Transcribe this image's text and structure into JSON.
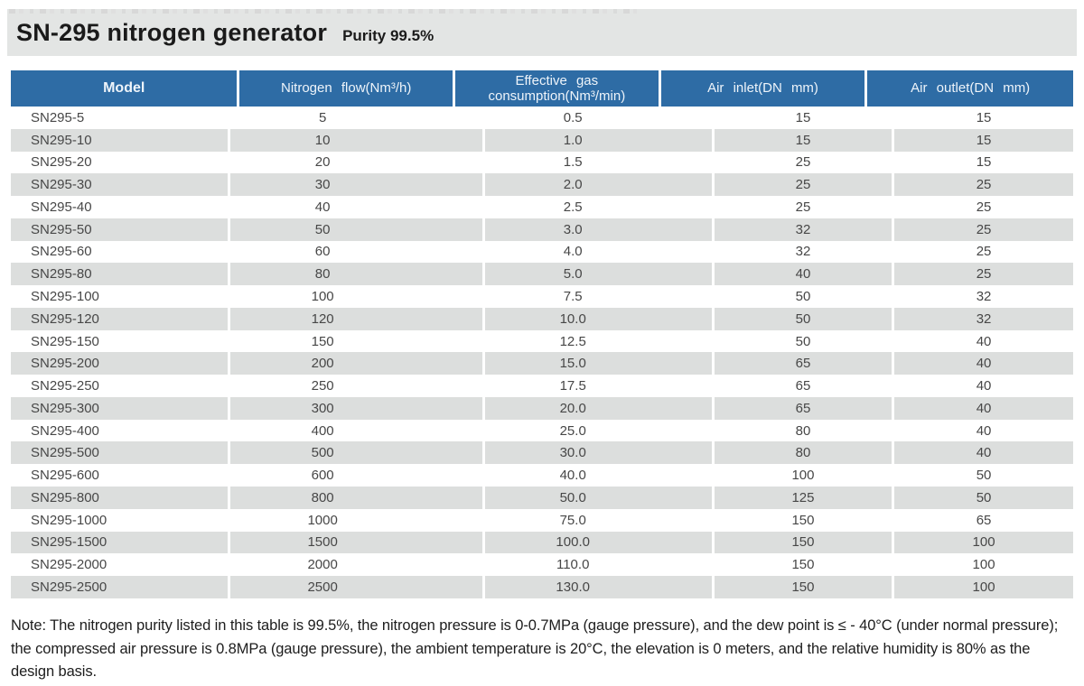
{
  "header": {
    "title": "SN-295 nitrogen generator",
    "subtitle": "Purity 99.5%"
  },
  "colors": {
    "table_header_bg": "#2e6ca5",
    "table_header_text": "#eef4fa",
    "stripe_row_bg": "#dcdedd",
    "title_band_bg": "#e3e5e4",
    "cell_text": "#474747"
  },
  "table": {
    "columns": [
      "Model",
      "Nitrogen flow(Nm³/h)",
      "Effective gas\nconsumption(Nm³/min)",
      "Air inlet(DN mm)",
      "Air outlet(DN mm)"
    ],
    "rows": [
      [
        "SN295-5",
        "5",
        "0.5",
        "15",
        "15"
      ],
      [
        "SN295-10",
        "10",
        "1.0",
        "15",
        "15"
      ],
      [
        "SN295-20",
        "20",
        "1.5",
        "25",
        "15"
      ],
      [
        "SN295-30",
        "30",
        "2.0",
        "25",
        "25"
      ],
      [
        "SN295-40",
        "40",
        "2.5",
        "25",
        "25"
      ],
      [
        "SN295-50",
        "50",
        "3.0",
        "32",
        "25"
      ],
      [
        "SN295-60",
        "60",
        "4.0",
        "32",
        "25"
      ],
      [
        "SN295-80",
        "80",
        "5.0",
        "40",
        "25"
      ],
      [
        "SN295-100",
        "100",
        "7.5",
        "50",
        "32"
      ],
      [
        "SN295-120",
        "120",
        "10.0",
        "50",
        "32"
      ],
      [
        "SN295-150",
        "150",
        "12.5",
        "50",
        "40"
      ],
      [
        "SN295-200",
        "200",
        "15.0",
        "65",
        "40"
      ],
      [
        "SN295-250",
        "250",
        "17.5",
        "65",
        "40"
      ],
      [
        "SN295-300",
        "300",
        "20.0",
        "65",
        "40"
      ],
      [
        "SN295-400",
        "400",
        "25.0",
        "80",
        "40"
      ],
      [
        "SN295-500",
        "500",
        "30.0",
        "80",
        "40"
      ],
      [
        "SN295-600",
        "600",
        "40.0",
        "100",
        "50"
      ],
      [
        "SN295-800",
        "800",
        "50.0",
        "125",
        "50"
      ],
      [
        "SN295-1000",
        "1000",
        "75.0",
        "150",
        "65"
      ],
      [
        "SN295-1500",
        "1500",
        "100.0",
        "150",
        "100"
      ],
      [
        "SN295-2000",
        "2000",
        "110.0",
        "150",
        "100"
      ],
      [
        "SN295-2500",
        "2500",
        "130.0",
        "150",
        "100"
      ]
    ]
  },
  "note": {
    "text": "Note: The nitrogen purity listed in this table is 99.5%, the nitrogen pressure is 0-0.7MPa (gauge pressure), and the dew point is ≤ - 40°C (under normal pressure); the compressed air pressure is 0.8MPa (gauge pressure), the ambient temperature is 20°C, the elevation is 0 meters, and the relative humidity is 80% as the design basis."
  }
}
